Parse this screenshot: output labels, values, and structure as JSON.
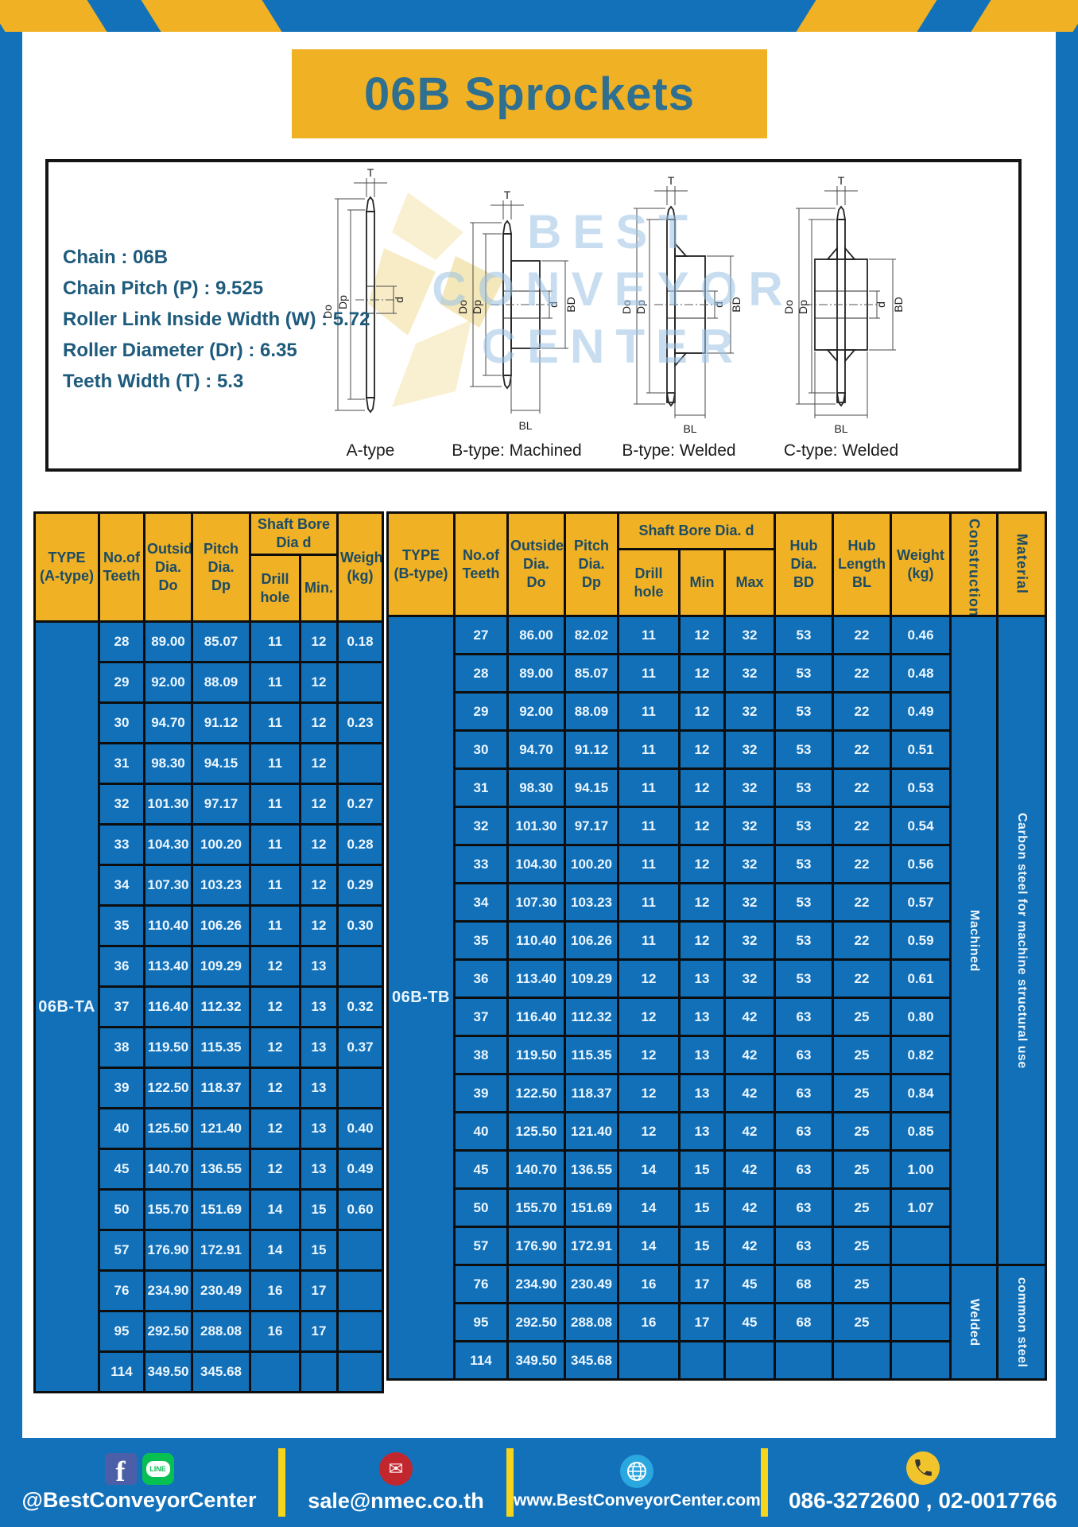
{
  "colors": {
    "frame-blue": "#1371BA",
    "cell-blue": "#1170B8",
    "accent-yellow": "#F0B125",
    "divider-yellow": "#F6D41B",
    "title-teal": "#2F6F90",
    "spec-teal": "#1E5B7C",
    "header-text": "#1C4B63",
    "cell-text": "#ECF6FF",
    "fb-blue": "#4A5FA8",
    "line-green": "#06C152",
    "mail-red": "#C2272E",
    "globe-blue": "#2BA7E0",
    "phone-yellow": "#F2C42C"
  },
  "page": {
    "title": "06B Sprockets"
  },
  "specs": {
    "lines": [
      "Chain : 06B",
      "Chain Pitch (P) : 9.525",
      "Roller Link Inside Width (W) : 5.72",
      "Roller Diameter (Dr) : 6.35",
      "Teeth Width (T) : 5.3"
    ]
  },
  "diagrams": {
    "watermark_lines": [
      "BEST",
      "CONVEYOR",
      "CENTER"
    ],
    "captions": [
      "A-type",
      "B-type: Machined",
      "B-type: Welded",
      "C-type: Welded"
    ],
    "dim": {
      "t": "T",
      "do": "Do",
      "dp": "Dp",
      "d": "d",
      "bd": "BD",
      "bl": "BL"
    }
  },
  "table_a": {
    "headers": {
      "type": "TYPE\n(A-type)",
      "teeth": "No.of\nTeeth",
      "outside": "Outside\nDia.\nDo",
      "pitch": "Pitch Dia.\nDp",
      "shaft_group": "Shaft Bore Dia d",
      "drill": "Drill hole",
      "min": "Min.",
      "weight": "Weight\n(kg)"
    },
    "type_value": "06B-TA",
    "rows": [
      [
        "28",
        "89.00",
        "85.07",
        "11",
        "12",
        "0.18"
      ],
      [
        "29",
        "92.00",
        "88.09",
        "11",
        "12",
        ""
      ],
      [
        "30",
        "94.70",
        "91.12",
        "11",
        "12",
        "0.23"
      ],
      [
        "31",
        "98.30",
        "94.15",
        "11",
        "12",
        ""
      ],
      [
        "32",
        "101.30",
        "97.17",
        "11",
        "12",
        "0.27"
      ],
      [
        "33",
        "104.30",
        "100.20",
        "11",
        "12",
        "0.28"
      ],
      [
        "34",
        "107.30",
        "103.23",
        "11",
        "12",
        "0.29"
      ],
      [
        "35",
        "110.40",
        "106.26",
        "11",
        "12",
        "0.30"
      ],
      [
        "36",
        "113.40",
        "109.29",
        "12",
        "13",
        ""
      ],
      [
        "37",
        "116.40",
        "112.32",
        "12",
        "13",
        "0.32"
      ],
      [
        "38",
        "119.50",
        "115.35",
        "12",
        "13",
        "0.37"
      ],
      [
        "39",
        "122.50",
        "118.37",
        "12",
        "13",
        ""
      ],
      [
        "40",
        "125.50",
        "121.40",
        "12",
        "13",
        "0.40"
      ],
      [
        "45",
        "140.70",
        "136.55",
        "12",
        "13",
        "0.49"
      ],
      [
        "50",
        "155.70",
        "151.69",
        "14",
        "15",
        "0.60"
      ],
      [
        "57",
        "176.90",
        "172.91",
        "14",
        "15",
        ""
      ],
      [
        "76",
        "234.90",
        "230.49",
        "16",
        "17",
        ""
      ],
      [
        "95",
        "292.50",
        "288.08",
        "16",
        "17",
        ""
      ],
      [
        "114",
        "349.50",
        "345.68",
        "",
        "",
        ""
      ]
    ]
  },
  "table_b": {
    "headers": {
      "type": "TYPE\n(B-type)",
      "teeth": "No.of\nTeeth",
      "outside": "Outside\nDia.\nDo",
      "pitch": "Pitch\nDia.\nDp",
      "shaft_group": "Shaft Bore Dia. d",
      "drill": "Drill hole",
      "min": "Min",
      "max": "Max",
      "hub_dia": "Hub\nDia.\nBD",
      "hub_len": "Hub\nLength\nBL",
      "weight": "Weight\n(kg)",
      "construction": "Construction",
      "material": "Material"
    },
    "type_value": "06B-TB",
    "rows": [
      [
        "27",
        "86.00",
        "82.02",
        "11",
        "12",
        "32",
        "53",
        "22",
        "0.46"
      ],
      [
        "28",
        "89.00",
        "85.07",
        "11",
        "12",
        "32",
        "53",
        "22",
        "0.48"
      ],
      [
        "29",
        "92.00",
        "88.09",
        "11",
        "12",
        "32",
        "53",
        "22",
        "0.49"
      ],
      [
        "30",
        "94.70",
        "91.12",
        "11",
        "12",
        "32",
        "53",
        "22",
        "0.51"
      ],
      [
        "31",
        "98.30",
        "94.15",
        "11",
        "12",
        "32",
        "53",
        "22",
        "0.53"
      ],
      [
        "32",
        "101.30",
        "97.17",
        "11",
        "12",
        "32",
        "53",
        "22",
        "0.54"
      ],
      [
        "33",
        "104.30",
        "100.20",
        "11",
        "12",
        "32",
        "53",
        "22",
        "0.56"
      ],
      [
        "34",
        "107.30",
        "103.23",
        "11",
        "12",
        "32",
        "53",
        "22",
        "0.57"
      ],
      [
        "35",
        "110.40",
        "106.26",
        "11",
        "12",
        "32",
        "53",
        "22",
        "0.59"
      ],
      [
        "36",
        "113.40",
        "109.29",
        "12",
        "13",
        "32",
        "53",
        "22",
        "0.61"
      ],
      [
        "37",
        "116.40",
        "112.32",
        "12",
        "13",
        "42",
        "63",
        "25",
        "0.80"
      ],
      [
        "38",
        "119.50",
        "115.35",
        "12",
        "13",
        "42",
        "63",
        "25",
        "0.82"
      ],
      [
        "39",
        "122.50",
        "118.37",
        "12",
        "13",
        "42",
        "63",
        "25",
        "0.84"
      ],
      [
        "40",
        "125.50",
        "121.40",
        "12",
        "13",
        "42",
        "63",
        "25",
        "0.85"
      ],
      [
        "45",
        "140.70",
        "136.55",
        "14",
        "15",
        "42",
        "63",
        "25",
        "1.00"
      ],
      [
        "50",
        "155.70",
        "151.69",
        "14",
        "15",
        "42",
        "63",
        "25",
        "1.07"
      ],
      [
        "57",
        "176.90",
        "172.91",
        "14",
        "15",
        "42",
        "63",
        "25",
        ""
      ],
      [
        "76",
        "234.90",
        "230.49",
        "16",
        "17",
        "45",
        "68",
        "25",
        ""
      ],
      [
        "95",
        "292.50",
        "288.08",
        "16",
        "17",
        "45",
        "68",
        "25",
        ""
      ],
      [
        "114",
        "349.50",
        "345.68",
        "",
        "",
        "",
        "",
        "",
        ""
      ]
    ],
    "construction": [
      {
        "label": "Machined",
        "rows": 17
      },
      {
        "label": "Welded",
        "rows": 3
      }
    ],
    "material": [
      {
        "label": "Carbon steel for machine structural use",
        "rows": 17
      },
      {
        "label": "common steel",
        "rows": 3
      }
    ]
  },
  "footer": {
    "social_label": "@BestConveyorCenter",
    "line_text": "LINE",
    "email": "sale@nmec.co.th",
    "website": "www.BestConveyorCenter.com",
    "phone": "086-3272600 , 02-0017766"
  }
}
